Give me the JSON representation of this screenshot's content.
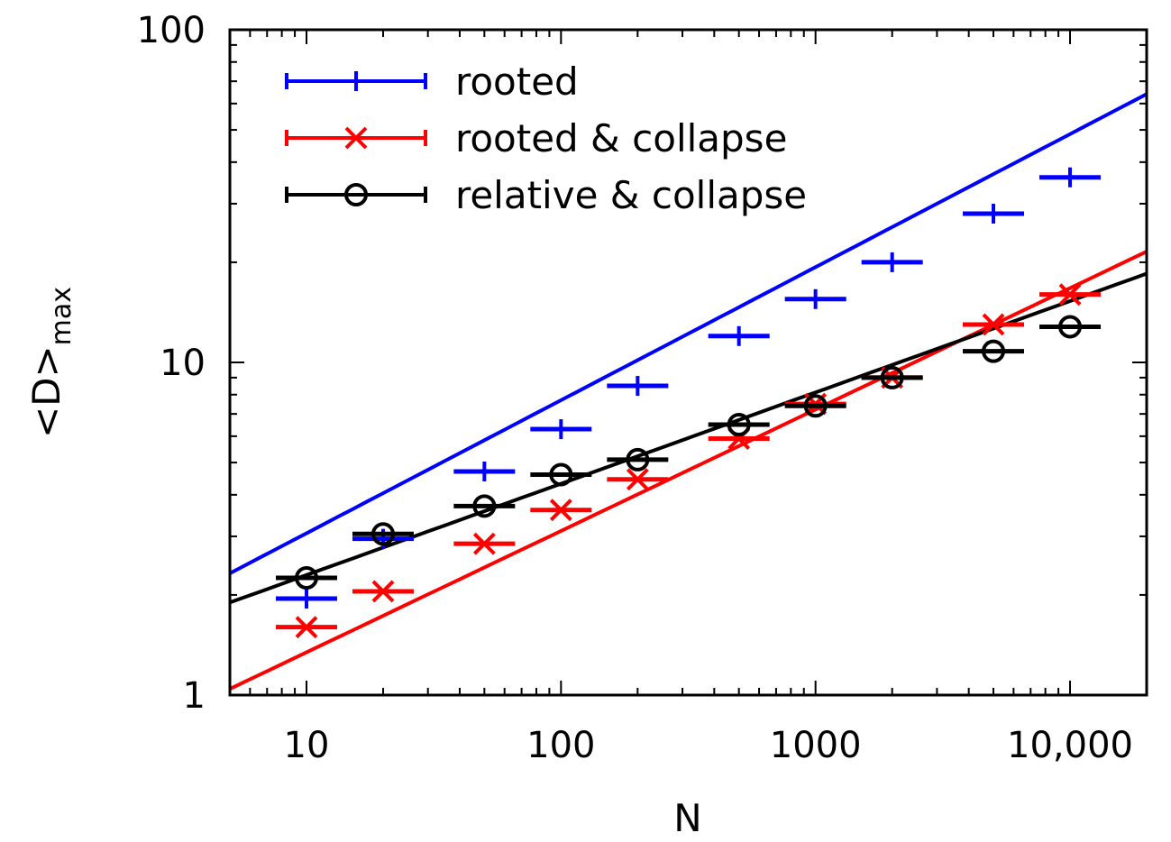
{
  "chart_data": {
    "type": "scatter",
    "xscale": "log",
    "yscale": "log",
    "xlim": [
      5,
      20000
    ],
    "ylim": [
      1,
      100
    ],
    "xlabel": "N",
    "ylabel": "<D>",
    "ylabel_subscript": "max",
    "xticks": [
      {
        "value": 10,
        "label": "10"
      },
      {
        "value": 100,
        "label": "100"
      },
      {
        "value": 1000,
        "label": "1000"
      },
      {
        "value": 10000,
        "label": "10,000"
      }
    ],
    "yticks": [
      {
        "value": 1,
        "label": "1"
      },
      {
        "value": 10,
        "label": "10"
      },
      {
        "value": 100,
        "label": "100"
      }
    ],
    "legend_position": "top-left",
    "series": [
      {
        "name": "rooted",
        "color": "#0000ff",
        "marker": "plus",
        "x": [
          10,
          20,
          50,
          100,
          200,
          500,
          1000,
          2000,
          5000,
          10000
        ],
        "y": [
          1.95,
          2.95,
          4.7,
          6.3,
          8.5,
          12.0,
          15.5,
          20.0,
          28.0,
          36.0
        ],
        "fit": {
          "coef": 1.22,
          "exp": 0.4
        }
      },
      {
        "name": "rooted & collapse",
        "color": "#ff0000",
        "marker": "x",
        "x": [
          10,
          20,
          50,
          100,
          200,
          500,
          1000,
          2000,
          5000,
          10000
        ],
        "y": [
          1.6,
          2.05,
          2.85,
          3.6,
          4.45,
          5.9,
          7.5,
          9.0,
          13.0,
          16.0
        ],
        "fit": {
          "coef": 0.58,
          "exp": 0.365
        }
      },
      {
        "name": "relative & collapse",
        "color": "#000000",
        "marker": "circle",
        "x": [
          10,
          20,
          50,
          100,
          200,
          500,
          1000,
          2000,
          5000,
          10000
        ],
        "y": [
          2.25,
          3.05,
          3.7,
          4.6,
          5.1,
          6.5,
          7.4,
          9.0,
          10.8,
          12.8
        ],
        "fit": {
          "coef": 1.22,
          "exp": 0.2745
        }
      }
    ]
  }
}
